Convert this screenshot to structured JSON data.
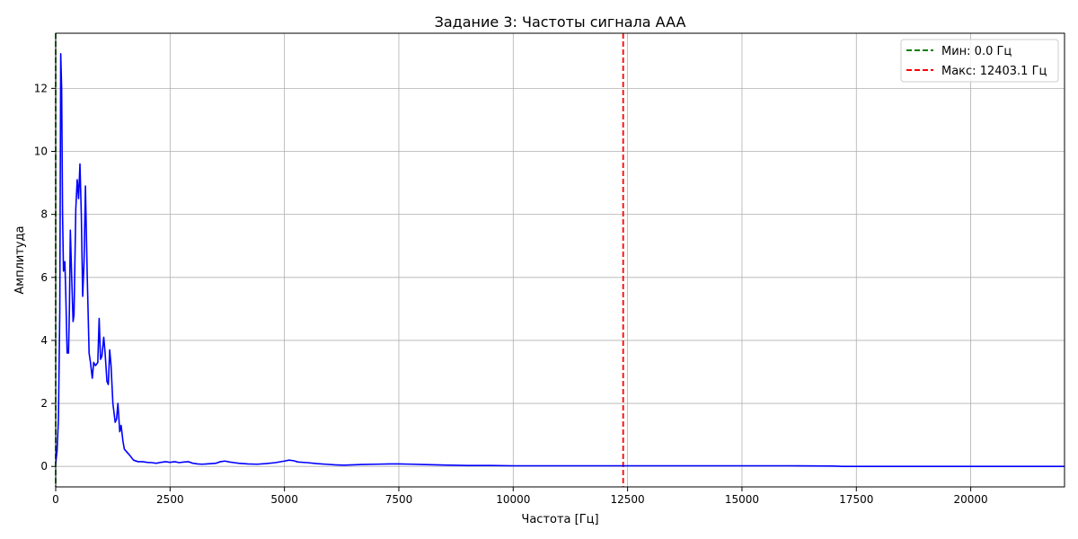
{
  "chart_data": {
    "type": "line",
    "title": "Задание 3: Частоты сигнала AAA",
    "xlabel": "Частота [Гц]",
    "ylabel": "Амплитуда",
    "xlim": [
      0,
      22050
    ],
    "ylim": [
      -0.65,
      13.75
    ],
    "xticks": [
      0,
      2500,
      5000,
      7500,
      10000,
      12500,
      15000,
      17500,
      20000
    ],
    "yticks": [
      0,
      2,
      4,
      6,
      8,
      10,
      12
    ],
    "grid": true,
    "legend_position": "top-right",
    "series": [
      {
        "color": "#0000ff",
        "x": [
          0,
          30,
          60,
          90,
          110,
          130,
          150,
          170,
          200,
          220,
          250,
          280,
          300,
          320,
          350,
          380,
          400,
          440,
          470,
          500,
          530,
          560,
          590,
          620,
          650,
          690,
          730,
          760,
          800,
          830,
          870,
          920,
          950,
          980,
          1010,
          1050,
          1080,
          1120,
          1150,
          1180,
          1210,
          1250,
          1300,
          1330,
          1360,
          1400,
          1430,
          1470,
          1500,
          1560,
          1620,
          1700,
          1800,
          1900,
          2000,
          2100,
          2200,
          2300,
          2400,
          2500,
          2600,
          2700,
          2800,
          2900,
          3000,
          3100,
          3200,
          3300,
          3400,
          3500,
          3600,
          3700,
          3800,
          3900,
          4000,
          4200,
          4400,
          4600,
          4800,
          5000,
          5100,
          5200,
          5300,
          5500,
          5700,
          5900,
          6100,
          6300,
          6500,
          6700,
          7000,
          7300,
          7500,
          7800,
          8000,
          8300,
          8600,
          9000,
          9500,
          10000,
          11000,
          12000,
          13000,
          14000,
          15000,
          16000,
          17000,
          17200,
          18000,
          19000,
          20000,
          21000,
          22050
        ],
        "y": [
          0.1,
          0.5,
          1.5,
          5.0,
          13.1,
          12.0,
          8.0,
          6.2,
          6.5,
          5.5,
          3.6,
          3.6,
          5.0,
          7.5,
          6.0,
          4.6,
          4.8,
          8.2,
          9.1,
          8.5,
          9.6,
          8.0,
          5.4,
          6.5,
          8.9,
          6.0,
          3.6,
          3.3,
          2.8,
          3.3,
          3.2,
          3.3,
          4.7,
          3.4,
          3.5,
          4.1,
          3.6,
          2.7,
          2.6,
          3.7,
          3.2,
          2.0,
          1.4,
          1.5,
          2.0,
          1.1,
          1.3,
          0.8,
          0.55,
          0.45,
          0.35,
          0.2,
          0.15,
          0.15,
          0.13,
          0.12,
          0.1,
          0.13,
          0.15,
          0.13,
          0.15,
          0.12,
          0.14,
          0.15,
          0.1,
          0.08,
          0.07,
          0.08,
          0.09,
          0.1,
          0.15,
          0.17,
          0.14,
          0.12,
          0.1,
          0.08,
          0.07,
          0.09,
          0.12,
          0.17,
          0.2,
          0.18,
          0.14,
          0.12,
          0.09,
          0.07,
          0.05,
          0.04,
          0.05,
          0.06,
          0.07,
          0.08,
          0.08,
          0.07,
          0.06,
          0.05,
          0.04,
          0.03,
          0.03,
          0.02,
          0.02,
          0.02,
          0.02,
          0.02,
          0.02,
          0.02,
          0.01,
          0.0,
          0.0,
          0.0,
          0.0,
          0.0,
          0.0
        ],
        "style": "solid"
      }
    ],
    "reference_lines": [
      {
        "orientation": "vertical",
        "x": 0.0,
        "name": "Мин: 0.0 Гц",
        "color": "#008000",
        "style": "dashed"
      },
      {
        "orientation": "vertical",
        "x": 12403.1,
        "name": "Макс: 12403.1 Гц",
        "color": "#ff0000",
        "style": "dashed"
      }
    ]
  }
}
